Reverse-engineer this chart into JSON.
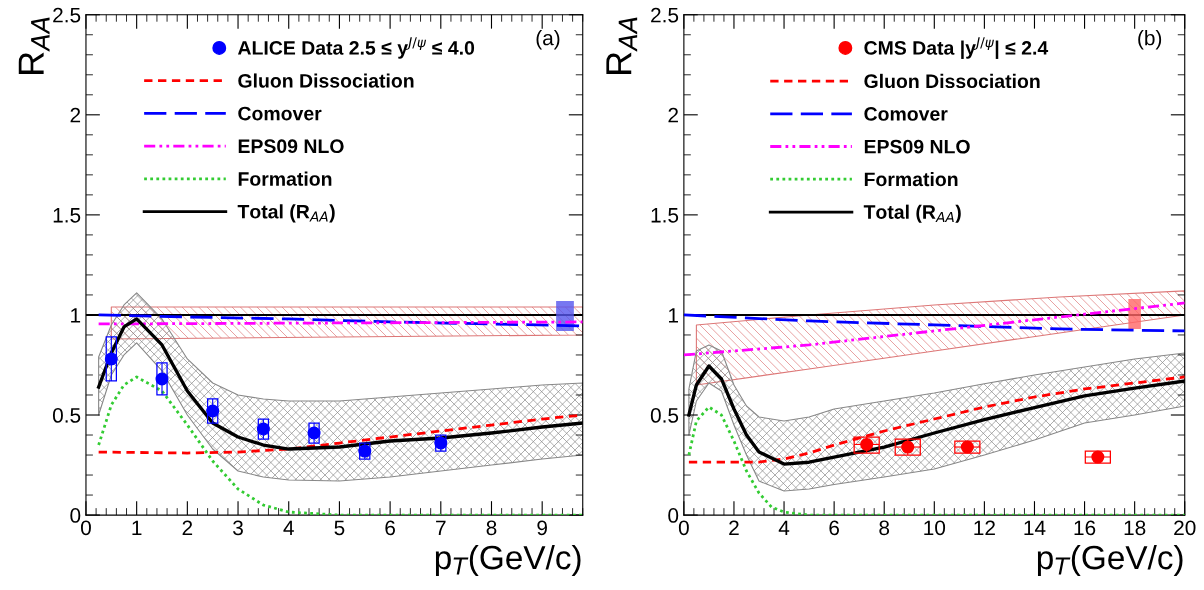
{
  "chart_data": [
    {
      "type": "line",
      "annotations": [
        "(a)"
      ],
      "xlabel": "p$_{T}$(GeV/c)",
      "ylabel": "R$_{AA}$",
      "xlim": [
        0,
        9.8
      ],
      "ylim": [
        0,
        2.5
      ],
      "xticks": [
        0,
        1,
        2,
        3,
        4,
        5,
        6,
        7,
        8,
        9
      ],
      "yticks": [
        0,
        0.5,
        1,
        1.5,
        2,
        2.5
      ],
      "legend": "top",
      "grid": false,
      "ref_lines": [
        {
          "axis": "y",
          "value": 1,
          "color": "#000000",
          "line_style": "solid"
        }
      ],
      "series": [
        {
          "type": "scatter",
          "name": "ALICE Data 2.5 ≤ y$^{J/ψ}$ ≤ 4.0",
          "color": "#0000ff",
          "marker": "circle",
          "x": [
            0.5,
            1.5,
            2.5,
            3.5,
            4.5,
            5.5,
            7
          ],
          "values": [
            0.78,
            0.68,
            0.52,
            0.43,
            0.41,
            0.32,
            0.36
          ],
          "errors": [
            [
              0.67,
              0.89
            ],
            [
              0.6,
              0.76
            ],
            [
              0.46,
              0.58
            ],
            [
              0.38,
              0.48
            ],
            [
              0.36,
              0.46
            ],
            [
              0.28,
              0.36
            ],
            [
              0.32,
              0.4
            ]
          ],
          "xerrors": [
            0.1,
            0.1,
            0.1,
            0.1,
            0.1,
            0.1,
            0.1
          ]
        },
        {
          "name": "Gluon Dissociation",
          "color": "#ff0000",
          "line_style": "dashed",
          "x": [
            0.25,
            2,
            3,
            4,
            5,
            6,
            7,
            8,
            9,
            9.8
          ],
          "values": [
            0.315,
            0.31,
            0.315,
            0.33,
            0.36,
            0.39,
            0.42,
            0.45,
            0.48,
            0.5
          ]
        },
        {
          "name": "Comover",
          "color": "#0000ff",
          "line_style": "longdash",
          "x": [
            0.25,
            2,
            4,
            6,
            8,
            9.8
          ],
          "values": [
            1.0,
            0.99,
            0.98,
            0.965,
            0.955,
            0.945
          ]
        },
        {
          "name": "EPS09 NLO",
          "color": "#ff00ff",
          "line_style": "dashdotdot",
          "x": [
            0.25,
            0.5,
            5,
            9.8
          ],
          "values": [
            0.955,
            0.955,
            0.96,
            0.965
          ],
          "lower": [
            null,
            0.88,
            0.89,
            0.9
          ],
          "upper": [
            null,
            1.04,
            1.04,
            1.04
          ]
        },
        {
          "name": "Formation",
          "color": "#33cc33",
          "line_style": "dotted",
          "x": [
            0.25,
            0.5,
            0.75,
            1,
            1.5,
            2,
            2.5,
            3,
            3.5,
            4,
            5,
            9.8
          ],
          "values": [
            0.35,
            0.55,
            0.65,
            0.69,
            0.62,
            0.45,
            0.27,
            0.13,
            0.05,
            0.015,
            0,
            0
          ]
        },
        {
          "name": "Total (R$_{AA}$)",
          "color": "#000000",
          "line_style": "solid",
          "x": [
            0.25,
            0.5,
            0.75,
            1,
            1.5,
            2,
            2.5,
            3,
            3.5,
            4,
            5,
            6,
            7,
            8,
            9,
            9.8
          ],
          "values": [
            0.64,
            0.81,
            0.94,
            0.98,
            0.85,
            0.62,
            0.46,
            0.39,
            0.35,
            0.33,
            0.34,
            0.37,
            0.385,
            0.41,
            0.44,
            0.46
          ],
          "upper": [
            0.79,
            0.95,
            1.05,
            1.11,
            0.98,
            0.78,
            0.66,
            0.6,
            0.58,
            0.57,
            0.57,
            0.59,
            0.61,
            0.63,
            0.65,
            0.66
          ],
          "lower": [
            0.5,
            0.7,
            0.8,
            0.86,
            0.72,
            0.5,
            0.33,
            0.22,
            0.19,
            0.175,
            0.17,
            0.19,
            0.22,
            0.25,
            0.28,
            0.3
          ]
        },
        {
          "type": "bar",
          "color": "#5555ee",
          "x": [
            9.45
          ],
          "base": [
            0.92
          ],
          "values": [
            0.15
          ]
        }
      ]
    },
    {
      "type": "line",
      "annotations": [
        "(b)"
      ],
      "xlabel": "p$_{T}$(GeV/c)",
      "ylabel": "R$_{AA}$",
      "xlim": [
        0,
        20
      ],
      "ylim": [
        0,
        2.5
      ],
      "xticks": [
        0,
        2,
        4,
        6,
        8,
        10,
        12,
        14,
        16,
        18,
        20
      ],
      "yticks": [
        0,
        0.5,
        1,
        1.5,
        2,
        2.5
      ],
      "legend": "top",
      "grid": false,
      "ref_lines": [
        {
          "axis": "y",
          "value": 1,
          "color": "#000000",
          "line_style": "solid"
        }
      ],
      "series": [
        {
          "type": "scatter",
          "name": "CMS Data |y$^{J/ψ}$| ≤ 2.4",
          "color": "#ff0000",
          "marker": "circle",
          "x": [
            7.3,
            8.94,
            11.32,
            16.53
          ],
          "values": [
            0.353,
            0.34,
            0.34,
            0.29
          ],
          "errors": [
            [
              0.31,
              0.39
            ],
            [
              0.3,
              0.38
            ],
            [
              0.31,
              0.37
            ],
            [
              0.26,
              0.32
            ]
          ],
          "xerrors": [
            0.5,
            0.5,
            0.5,
            0.5
          ]
        },
        {
          "name": "Gluon Dissociation",
          "color": "#ff0000",
          "line_style": "dashed",
          "x": [
            0.2,
            3,
            4,
            5,
            6,
            8,
            10,
            12,
            14,
            16,
            18,
            20
          ],
          "values": [
            0.265,
            0.265,
            0.28,
            0.31,
            0.35,
            0.42,
            0.48,
            0.54,
            0.59,
            0.63,
            0.66,
            0.69
          ]
        },
        {
          "name": "Comover",
          "color": "#0000ff",
          "line_style": "longdash",
          "x": [
            0,
            5,
            10,
            15,
            20
          ],
          "values": [
            1.0,
            0.97,
            0.95,
            0.93,
            0.92
          ]
        },
        {
          "name": "EPS09 NLO",
          "color": "#ff00ff",
          "line_style": "dashdotdot",
          "x": [
            0,
            0.5,
            5,
            10,
            15,
            20
          ],
          "values": [
            0.8,
            0.805,
            0.85,
            0.92,
            0.99,
            1.06
          ],
          "lower": [
            null,
            0.65,
            0.73,
            0.82,
            0.91,
            1.0
          ],
          "upper": [
            null,
            0.95,
            1.0,
            1.05,
            1.09,
            1.12
          ]
        },
        {
          "name": "Formation",
          "color": "#33cc33",
          "line_style": "dotted",
          "x": [
            0.2,
            0.5,
            1,
            1.5,
            2,
            2.5,
            3,
            3.5,
            4,
            5,
            20
          ],
          "values": [
            0.3,
            0.47,
            0.54,
            0.5,
            0.37,
            0.22,
            0.11,
            0.04,
            0.015,
            0,
            0
          ]
        },
        {
          "name": "Total (R$_{AA}$)",
          "color": "#000000",
          "line_style": "solid",
          "x": [
            0.2,
            0.5,
            1,
            1.5,
            2,
            2.5,
            3,
            4,
            5,
            6,
            8,
            10,
            12,
            14,
            16,
            18,
            20
          ],
          "values": [
            0.5,
            0.65,
            0.745,
            0.68,
            0.53,
            0.4,
            0.315,
            0.255,
            0.264,
            0.29,
            0.34,
            0.41,
            0.477,
            0.537,
            0.596,
            0.634,
            0.67
          ],
          "upper": [
            0.63,
            0.82,
            0.85,
            0.82,
            0.65,
            0.545,
            0.49,
            0.47,
            0.49,
            0.53,
            0.57,
            0.61,
            0.656,
            0.7,
            0.74,
            0.78,
            0.81
          ],
          "lower": [
            0.4,
            0.57,
            0.66,
            0.62,
            0.45,
            0.3,
            0.17,
            0.12,
            0.13,
            0.153,
            0.19,
            0.23,
            0.3,
            0.375,
            0.46,
            0.5,
            0.545
          ]
        },
        {
          "type": "bar",
          "color": "#ff6666",
          "x": [
            18
          ],
          "base": [
            0.93
          ],
          "values": [
            0.15
          ]
        }
      ]
    }
  ]
}
